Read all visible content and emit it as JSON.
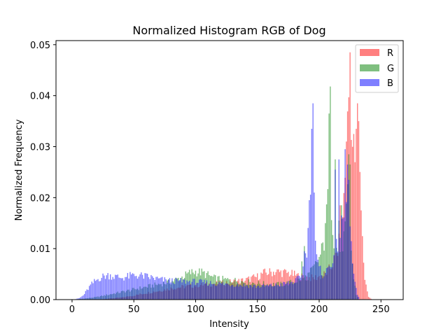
{
  "chart_data": {
    "type": "bar",
    "title": "Normalized Histogram RGB of Dog",
    "xlabel": "Intensity",
    "ylabel": "Normalized Frequency",
    "xlim": [
      -13,
      268
    ],
    "ylim": [
      0,
      0.0508
    ],
    "xticks": [
      0,
      50,
      100,
      150,
      200,
      250
    ],
    "yticks": [
      0.0,
      0.01,
      0.02,
      0.03,
      0.04,
      0.05
    ],
    "ytick_labels": [
      "0.00",
      "0.01",
      "0.02",
      "0.03",
      "0.04",
      "0.05"
    ],
    "legend_position": "top-right",
    "series": [
      {
        "name": "R",
        "color": "#ff0000",
        "alpha": 0.5,
        "anchors": [
          [
            0,
            0
          ],
          [
            20,
            0
          ],
          [
            30,
            0.0002
          ],
          [
            40,
            0.0004
          ],
          [
            50,
            0.0008
          ],
          [
            60,
            0.0013
          ],
          [
            70,
            0.0017
          ],
          [
            80,
            0.0022
          ],
          [
            90,
            0.0025
          ],
          [
            100,
            0.0028
          ],
          [
            110,
            0.003
          ],
          [
            120,
            0.0032
          ],
          [
            130,
            0.0035
          ],
          [
            140,
            0.0038
          ],
          [
            150,
            0.0045
          ],
          [
            155,
            0.0052
          ],
          [
            165,
            0.0055
          ],
          [
            175,
            0.0052
          ],
          [
            185,
            0.0045
          ],
          [
            195,
            0.0042
          ],
          [
            200,
            0.0045
          ],
          [
            205,
            0.005
          ],
          [
            210,
            0.0065
          ],
          [
            215,
            0.0095
          ],
          [
            218,
            0.014
          ],
          [
            220,
            0.02
          ],
          [
            222,
            0.028
          ],
          [
            224,
            0.04
          ],
          [
            225,
            0.044
          ],
          [
            227,
            0.03
          ],
          [
            229,
            0.028
          ],
          [
            231,
            0.034
          ],
          [
            233,
            0.026
          ],
          [
            235,
            0.012
          ],
          [
            237,
            0.004
          ],
          [
            240,
            0.0005
          ],
          [
            243,
            0
          ]
        ],
        "peaks": [
          [
            217,
            0.0185
          ],
          [
            222,
            0.031
          ],
          [
            225,
            0.0485
          ],
          [
            230,
            0.0335
          ],
          [
            231,
            0.0385
          ],
          [
            232,
            0.035
          ],
          [
            234,
            0.0175
          ]
        ]
      },
      {
        "name": "G",
        "color": "#008000",
        "alpha": 0.5,
        "anchors": [
          [
            0,
            0
          ],
          [
            10,
            0.0002
          ],
          [
            20,
            0.0005
          ],
          [
            30,
            0.001
          ],
          [
            40,
            0.0015
          ],
          [
            50,
            0.002
          ],
          [
            60,
            0.0025
          ],
          [
            70,
            0.003
          ],
          [
            80,
            0.0035
          ],
          [
            90,
            0.0045
          ],
          [
            95,
            0.0052
          ],
          [
            100,
            0.0055
          ],
          [
            105,
            0.0053
          ],
          [
            110,
            0.0048
          ],
          [
            115,
            0.0042
          ],
          [
            120,
            0.004
          ],
          [
            130,
            0.0038
          ],
          [
            140,
            0.0035
          ],
          [
            150,
            0.0032
          ],
          [
            160,
            0.003
          ],
          [
            170,
            0.003
          ],
          [
            180,
            0.0035
          ],
          [
            190,
            0.0045
          ],
          [
            195,
            0.006
          ],
          [
            200,
            0.008
          ],
          [
            205,
            0.012
          ],
          [
            208,
            0.025
          ],
          [
            210,
            0.018
          ],
          [
            212,
            0.012
          ],
          [
            215,
            0.009
          ],
          [
            218,
            0.01
          ],
          [
            220,
            0.012
          ],
          [
            222,
            0.016
          ],
          [
            224,
            0.025
          ],
          [
            226,
            0.01
          ],
          [
            228,
            0.004
          ],
          [
            230,
            0.001
          ],
          [
            232,
            0
          ]
        ],
        "peaks": [
          [
            186,
            0.0075
          ],
          [
            188,
            0.0105
          ],
          [
            205,
            0.015
          ],
          [
            208,
            0.0365
          ],
          [
            209,
            0.0418
          ],
          [
            213,
            0.0275
          ],
          [
            216,
            0.0155
          ],
          [
            218,
            0.0185
          ],
          [
            224,
            0.0285
          ],
          [
            225,
            0.0265
          ]
        ]
      },
      {
        "name": "B",
        "color": "#0000ff",
        "alpha": 0.5,
        "anchors": [
          [
            0,
            0
          ],
          [
            3,
            0.0001
          ],
          [
            6,
            0.0003
          ],
          [
            9,
            0.0008
          ],
          [
            12,
            0.0018
          ],
          [
            15,
            0.0028
          ],
          [
            18,
            0.0035
          ],
          [
            22,
            0.0042
          ],
          [
            26,
            0.0046
          ],
          [
            30,
            0.0048
          ],
          [
            35,
            0.0045
          ],
          [
            40,
            0.0043
          ],
          [
            45,
            0.0045
          ],
          [
            50,
            0.0048
          ],
          [
            55,
            0.0047
          ],
          [
            60,
            0.0045
          ],
          [
            65,
            0.0043
          ],
          [
            70,
            0.004
          ],
          [
            75,
            0.0038
          ],
          [
            80,
            0.0037
          ],
          [
            90,
            0.0036
          ],
          [
            100,
            0.0035
          ],
          [
            110,
            0.0033
          ],
          [
            120,
            0.0031
          ],
          [
            130,
            0.003
          ],
          [
            140,
            0.0028
          ],
          [
            150,
            0.0026
          ],
          [
            160,
            0.0027
          ],
          [
            170,
            0.003
          ],
          [
            180,
            0.0035
          ],
          [
            185,
            0.0045
          ],
          [
            188,
            0.007
          ],
          [
            190,
            0.01
          ],
          [
            192,
            0.015
          ],
          [
            194,
            0.022
          ],
          [
            196,
            0.015
          ],
          [
            198,
            0.008
          ],
          [
            200,
            0.006
          ],
          [
            203,
            0.005
          ],
          [
            206,
            0.0055
          ],
          [
            209,
            0.007
          ],
          [
            212,
            0.0085
          ],
          [
            215,
            0.011
          ],
          [
            218,
            0.014
          ],
          [
            221,
            0.018
          ],
          [
            223,
            0.022
          ],
          [
            225,
            0.014
          ],
          [
            227,
            0.007
          ],
          [
            229,
            0.003
          ],
          [
            231,
            0.001
          ],
          [
            233,
            0
          ]
        ],
        "peaks": [
          [
            188,
            0.0095
          ],
          [
            192,
            0.0195
          ],
          [
            194,
            0.0335
          ],
          [
            195,
            0.0385
          ],
          [
            196,
            0.021
          ],
          [
            213,
            0.0255
          ],
          [
            216,
            0.0275
          ],
          [
            221,
            0.0295
          ],
          [
            223,
            0.0265
          ],
          [
            224,
            0.0235
          ]
        ]
      }
    ]
  }
}
